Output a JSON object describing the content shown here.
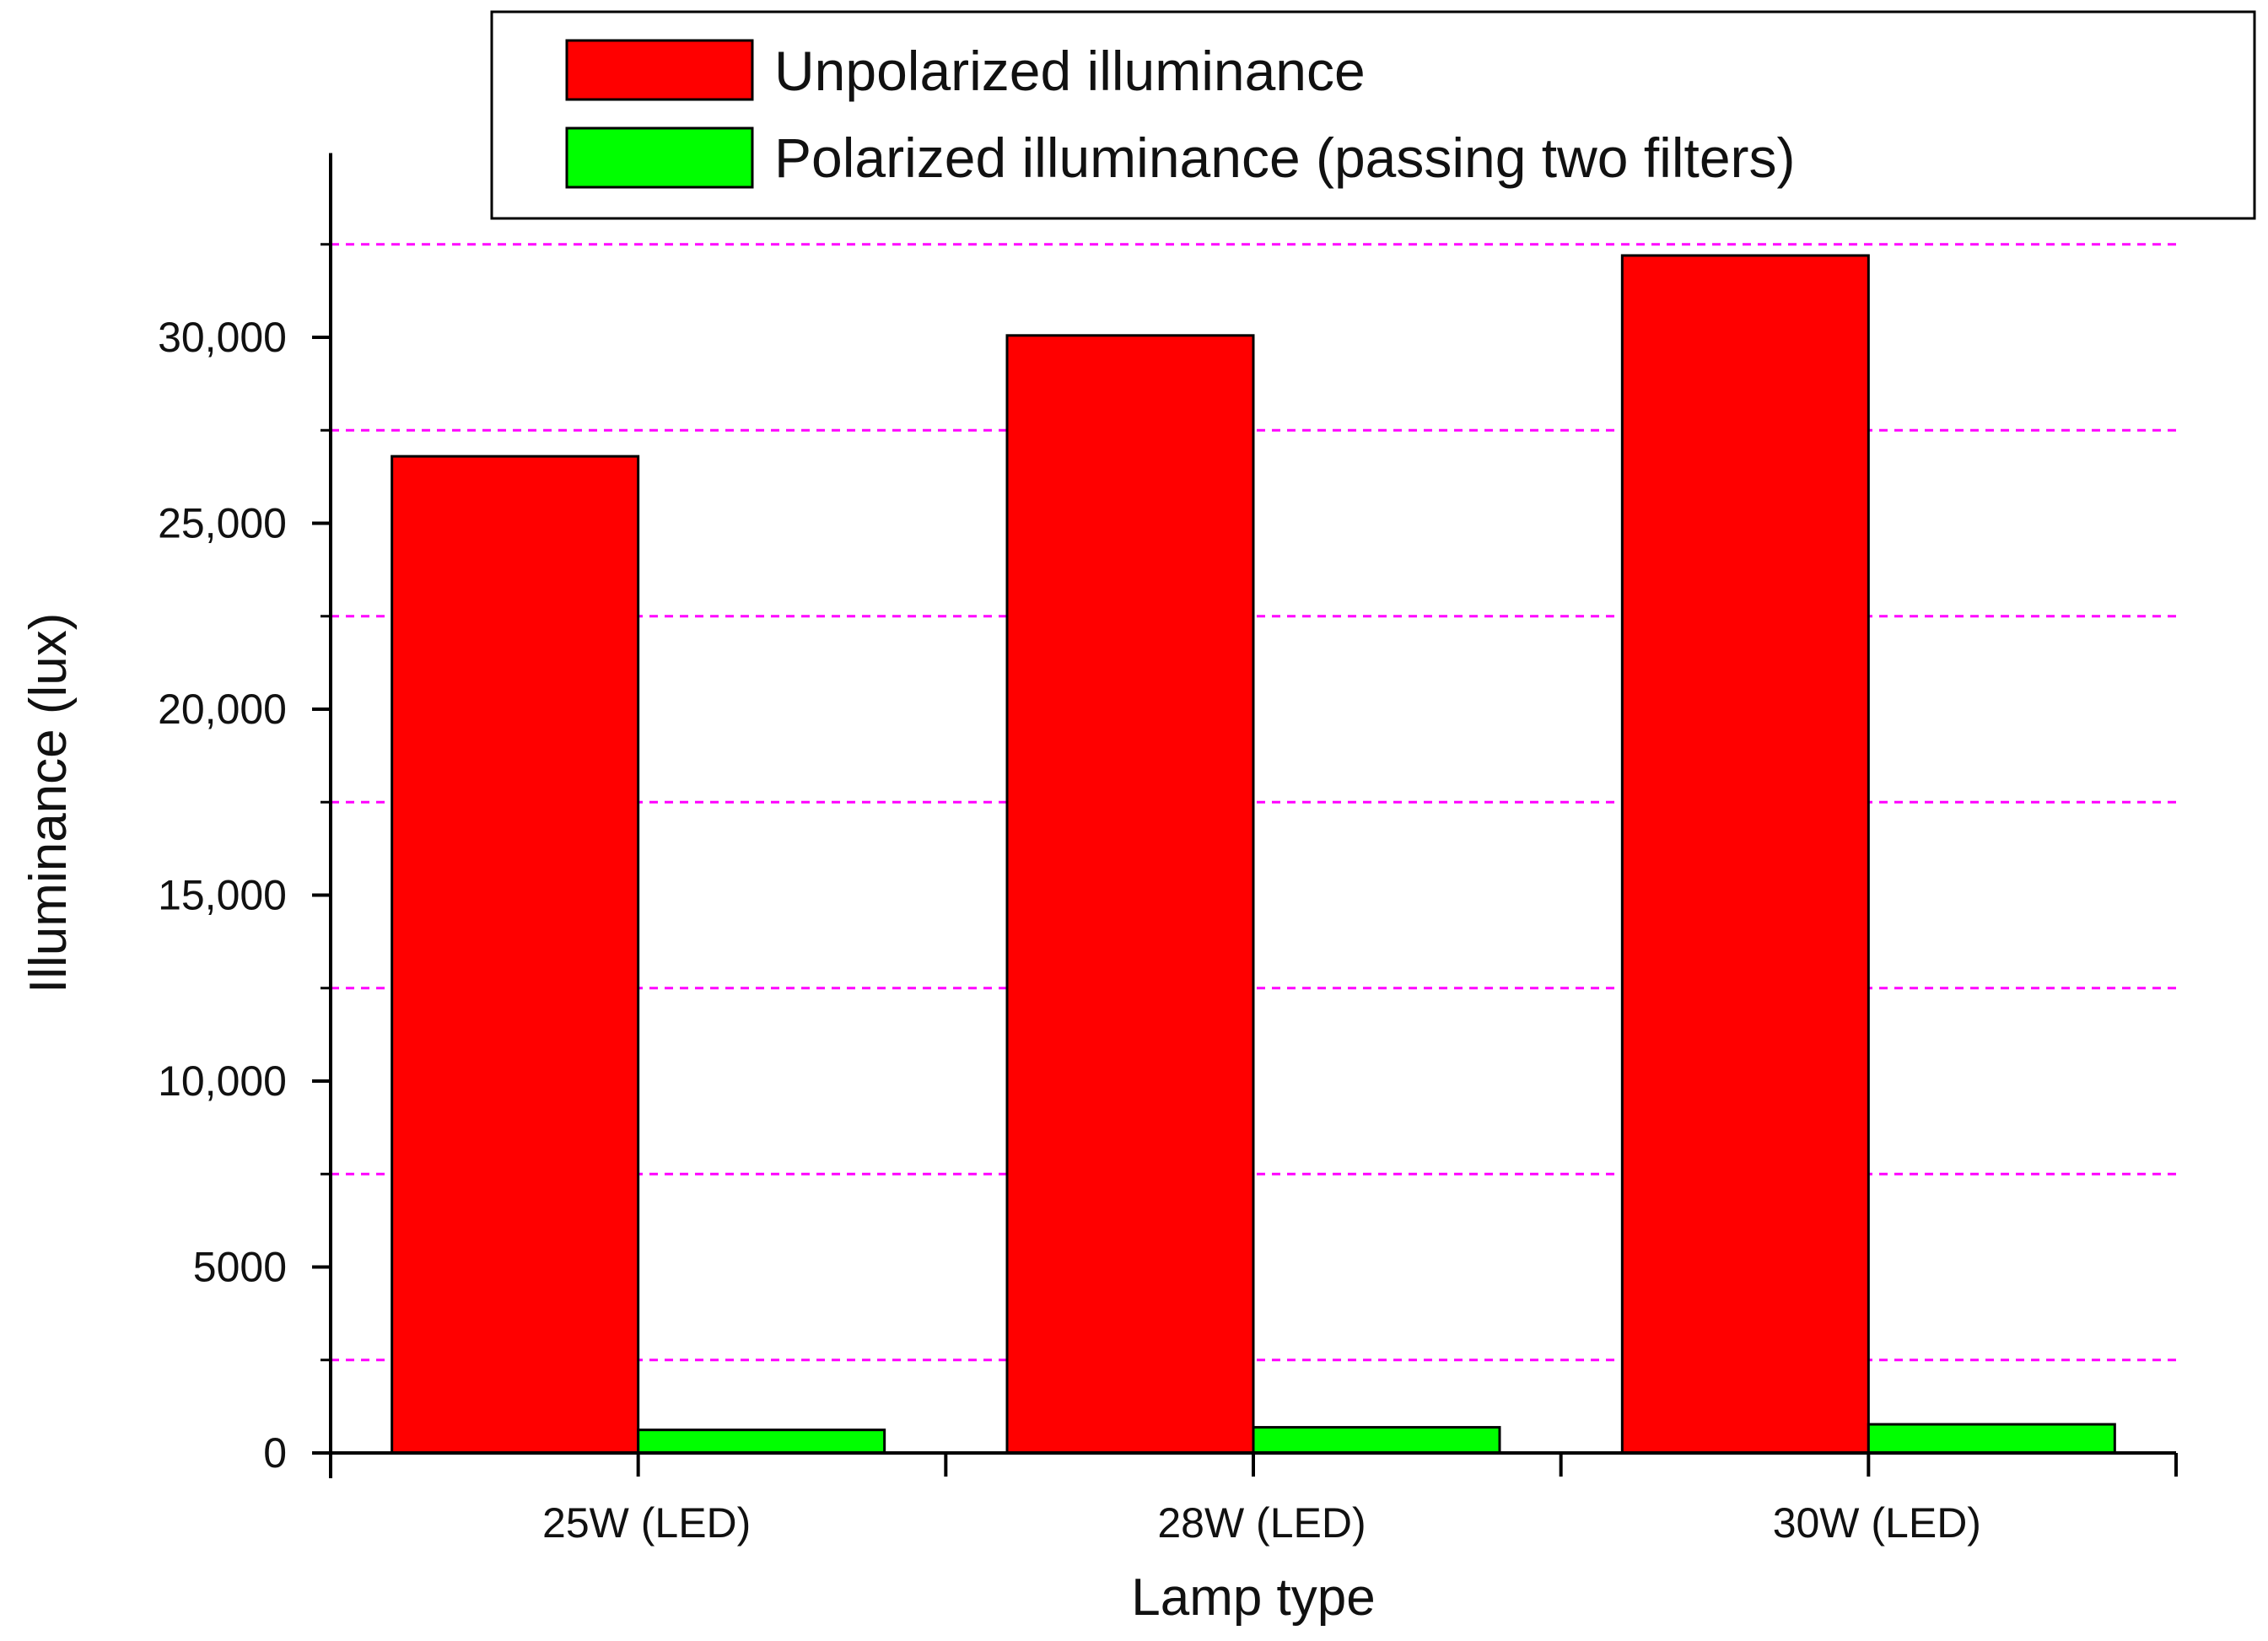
{
  "chart_data": {
    "type": "bar",
    "title": "",
    "xlabel": "Lamp type",
    "ylabel": "Illuminance (lux)",
    "categories": [
      "25W (LED)",
      "28W (LED)",
      "30W (LED)"
    ],
    "series": [
      {
        "name": "Unpolarized illuminance",
        "values": [
          26800,
          30050,
          32200
        ],
        "color": "#ff0000"
      },
      {
        "name": "Polarized illuminance (passing two filters)",
        "values": [
          620,
          690,
          770
        ],
        "color": "#00ff00"
      }
    ],
    "ylim": [
      0,
      34500
    ],
    "yticks": [
      0,
      5000,
      10000,
      15000,
      20000,
      25000,
      30000
    ],
    "ytick_labels": [
      "0",
      "5000",
      "10,000",
      "15,000",
      "20,000",
      "25,000",
      "30,000"
    ],
    "minor_grid_values": [
      2500,
      7500,
      12500,
      17500,
      22500,
      27500,
      32500
    ],
    "grid": true,
    "grid_color": "#ff00ff",
    "legend_position": "top-right"
  }
}
